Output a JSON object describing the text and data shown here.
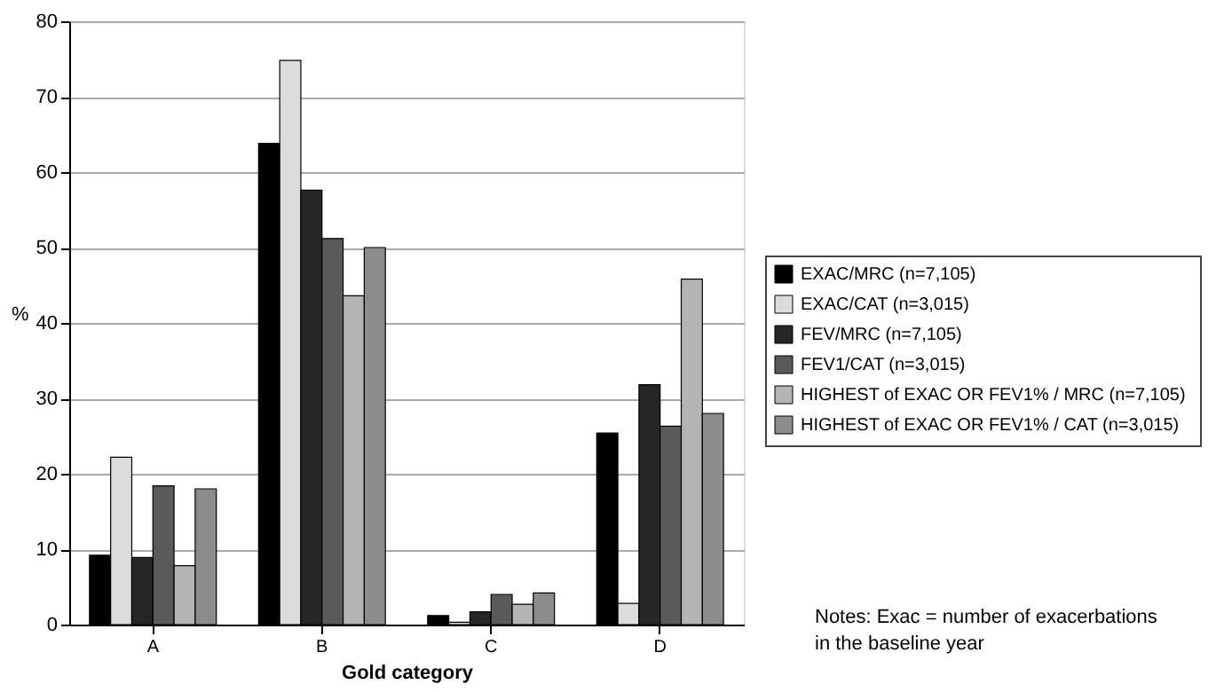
{
  "chart_data": {
    "type": "bar",
    "xlabel": "Gold category",
    "ylabel": "%",
    "categories": [
      "A",
      "B",
      "C",
      "D"
    ],
    "series": [
      {
        "name": "EXAC/MRC  (n=7,105)",
        "color": "#000000",
        "values": [
          9.2,
          63.8,
          1.2,
          25.4
        ]
      },
      {
        "name": "EXAC/CAT (n=3,015)",
        "color": "#dcdcdc",
        "values": [
          22.2,
          74.8,
          0.3,
          2.8
        ]
      },
      {
        "name": "FEV/MRC  (n=7,105)",
        "color": "#262626",
        "values": [
          8.9,
          57.6,
          1.7,
          31.8
        ]
      },
      {
        "name": "FEV1/CAT (n=3,015)",
        "color": "#5a5a5a",
        "values": [
          18.4,
          51.2,
          4.0,
          26.3
        ]
      },
      {
        "name": "HIGHEST of EXAC OR FEV1% / MRC  (n=7,105)",
        "color": "#b4b4b4",
        "values": [
          7.8,
          43.6,
          2.7,
          45.8
        ]
      },
      {
        "name": "HIGHEST of EXAC OR FEV1% / CAT  (n=3,015)",
        "color": "#8c8c8c",
        "values": [
          18.0,
          50.0,
          4.2,
          28.0
        ]
      }
    ],
    "ylim": [
      0,
      80
    ],
    "yticks": [
      0,
      10,
      20,
      30,
      40,
      50,
      60,
      70,
      80
    ],
    "grid": "y",
    "legend": "right",
    "annotations": [
      "Notes: Exac = number of exacerbations in the baseline year"
    ]
  }
}
